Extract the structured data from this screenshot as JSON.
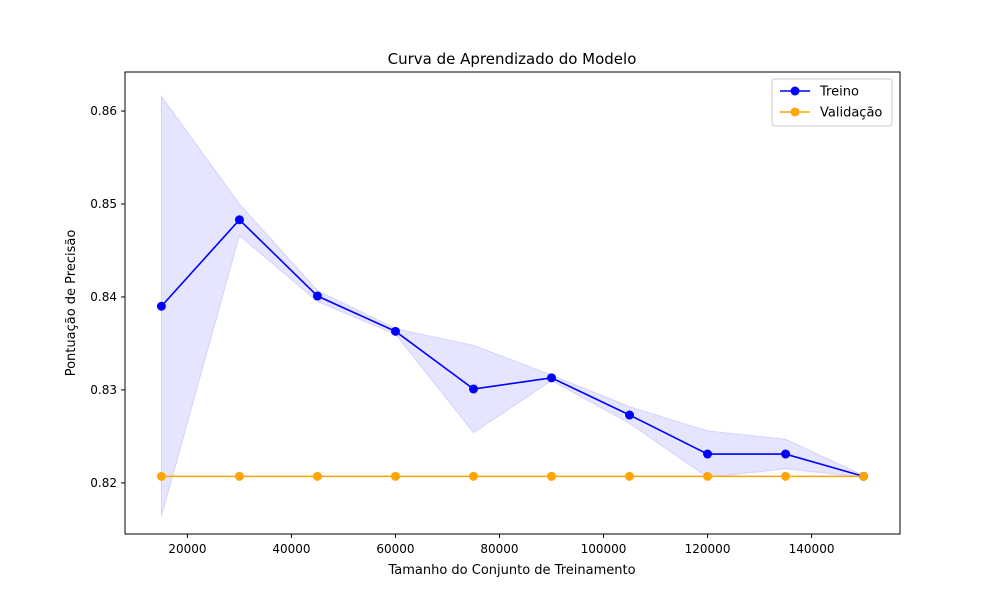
{
  "chart_data": {
    "type": "line",
    "title": "Curva de Aprendizado do Modelo",
    "xlabel": "Tamanho do Conjunto de Treinamento",
    "ylabel": "Pontuação de Precisão",
    "xlim": [
      8000,
      157000
    ],
    "ylim": [
      0.8145,
      0.8642
    ],
    "xticks": [
      20000,
      40000,
      60000,
      80000,
      100000,
      120000,
      140000
    ],
    "xtick_labels": [
      "20000",
      "40000",
      "60000",
      "80000",
      "100000",
      "120000",
      "140000"
    ],
    "yticks": [
      0.82,
      0.83,
      0.84,
      0.85,
      0.86
    ],
    "ytick_labels": [
      "0.82",
      "0.83",
      "0.84",
      "0.85",
      "0.86"
    ],
    "grid": false,
    "legend_position": "top-right",
    "x": [
      15000,
      30000,
      45000,
      60000,
      75000,
      90000,
      105000,
      120000,
      135000,
      150000
    ],
    "series": [
      {
        "name": "Treino",
        "color": "#0000ff",
        "marker": "circle",
        "values": [
          0.839,
          0.8483,
          0.8401,
          0.8363,
          0.8301,
          0.8313,
          0.8273,
          0.8231,
          0.8231,
          0.8207
        ],
        "band_upper": [
          0.8616,
          0.85,
          0.8407,
          0.8366,
          0.8348,
          0.8316,
          0.8282,
          0.8256,
          0.8247,
          0.8208
        ],
        "band_lower": [
          0.8164,
          0.8466,
          0.8395,
          0.836,
          0.8254,
          0.831,
          0.8264,
          0.8206,
          0.8215,
          0.8206
        ],
        "band_color": "#0000ff"
      },
      {
        "name": "Validação",
        "color": "#ffa500",
        "marker": "circle",
        "values": [
          0.8207,
          0.8207,
          0.8207,
          0.8207,
          0.8207,
          0.8207,
          0.8207,
          0.8207,
          0.8207,
          0.8207
        ]
      }
    ]
  }
}
